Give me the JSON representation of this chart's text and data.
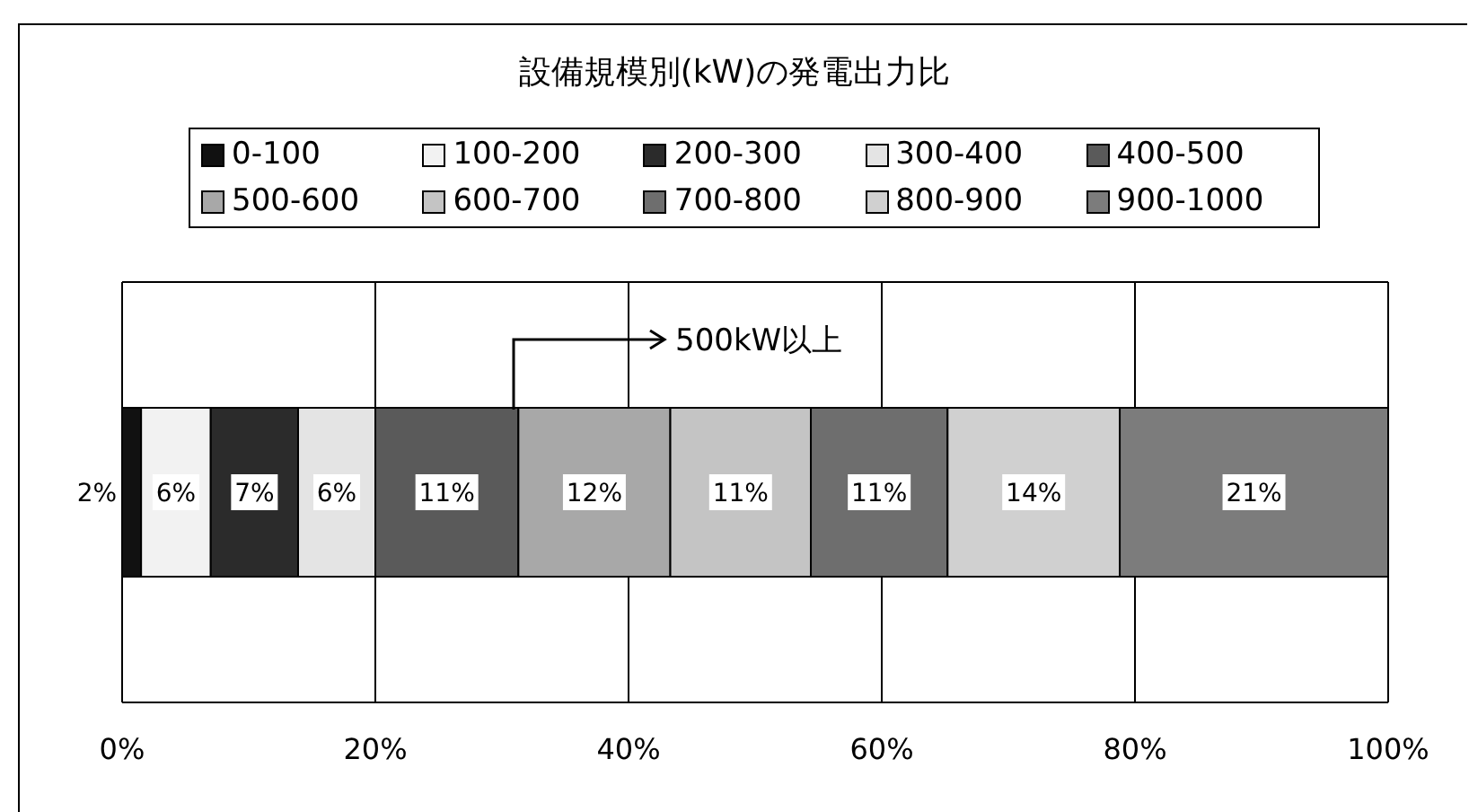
{
  "chart_data": {
    "type": "bar",
    "orientation": "horizontal",
    "stacked": true,
    "title": "設備規模別(kW)の発電出力比",
    "categories": [
      null
    ],
    "series": [
      {
        "name": "0-100",
        "color": "#111111",
        "values": [
          1.5
        ],
        "value_labels": [
          "2%"
        ]
      },
      {
        "name": "100-200",
        "color": "#f2f2f2",
        "values": [
          5.5
        ],
        "value_labels": [
          "6%"
        ]
      },
      {
        "name": "200-300",
        "color": "#2b2b2b",
        "values": [
          6.9
        ],
        "value_labels": [
          "7%"
        ]
      },
      {
        "name": "300-400",
        "color": "#e4e4e4",
        "values": [
          6.1
        ],
        "value_labels": [
          "6%"
        ]
      },
      {
        "name": "400-500",
        "color": "#5a5a5a",
        "values": [
          11.3
        ],
        "value_labels": [
          "11%"
        ]
      },
      {
        "name": "500-600",
        "color": "#a8a8a8",
        "values": [
          12.0
        ],
        "value_labels": [
          "12%"
        ]
      },
      {
        "name": "600-700",
        "color": "#c4c4c4",
        "values": [
          11.1
        ],
        "value_labels": [
          "11%"
        ]
      },
      {
        "name": "700-800",
        "color": "#6e6e6e",
        "values": [
          10.8
        ],
        "value_labels": [
          "11%"
        ]
      },
      {
        "name": "800-900",
        "color": "#d0d0d0",
        "values": [
          13.6
        ],
        "value_labels": [
          "14%"
        ]
      },
      {
        "name": "900-1000",
        "color": "#7c7c7c",
        "values": [
          21.2
        ],
        "value_labels": [
          "21%"
        ]
      }
    ],
    "xlim": [
      0,
      100
    ],
    "xticks": [
      {
        "value": 0,
        "label": "0%"
      },
      {
        "value": 20,
        "label": "20%"
      },
      {
        "value": 40,
        "label": "40%"
      },
      {
        "value": 60,
        "label": "60%"
      },
      {
        "value": 80,
        "label": "80%"
      },
      {
        "value": 100,
        "label": "100%"
      }
    ],
    "grid": "x",
    "legend": "top",
    "tick_labels": "x",
    "annotations": [
      "500kW以上"
    ]
  }
}
